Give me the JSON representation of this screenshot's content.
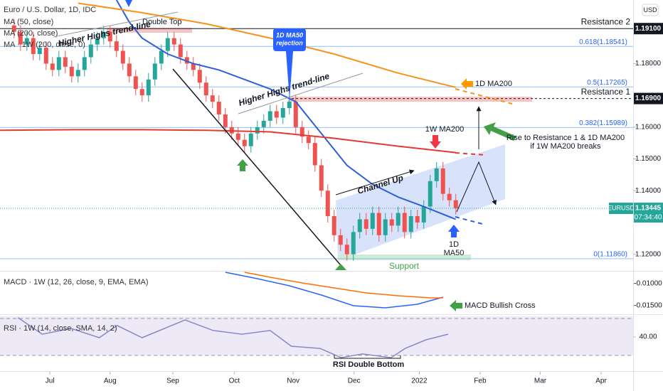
{
  "chart_data": [
    {
      "type": "candlestick",
      "title": "Euro / U.S. Dollar, 1D, IDC",
      "currency": "USD",
      "up_color": "#26a69a",
      "down_color": "#ef5350",
      "x": [
        0,
        1,
        2,
        3,
        4,
        5,
        6,
        7,
        8,
        9,
        10,
        11,
        12,
        13,
        14,
        15,
        16,
        17,
        18,
        19,
        20,
        21,
        22,
        23,
        24,
        25,
        26,
        27,
        28,
        29,
        30,
        31,
        32,
        33,
        34,
        35,
        36,
        37,
        38,
        39,
        40,
        41,
        42,
        43,
        44,
        45,
        46,
        47,
        48,
        49,
        50,
        51,
        52,
        53,
        54,
        55,
        56,
        57,
        58,
        59,
        60,
        61,
        62,
        63,
        64,
        65,
        66,
        67,
        68,
        69
      ],
      "open": [
        1.192,
        1.19,
        1.186,
        1.188,
        1.183,
        1.185,
        1.18,
        1.178,
        1.182,
        1.179,
        1.176,
        1.178,
        1.182,
        1.186,
        1.188,
        1.19,
        1.187,
        1.184,
        1.18,
        1.176,
        1.172,
        1.17,
        1.175,
        1.18,
        1.184,
        1.188,
        1.186,
        1.182,
        1.18,
        1.178,
        1.174,
        1.17,
        1.168,
        1.164,
        1.16,
        1.158,
        1.156,
        1.154,
        1.158,
        1.16,
        1.162,
        1.165,
        1.163,
        1.166,
        1.168,
        1.16,
        1.157,
        1.155,
        1.148,
        1.14,
        1.132,
        1.126,
        1.123,
        1.12,
        1.127,
        1.131,
        1.128,
        1.133,
        1.126,
        1.131,
        1.129,
        1.133,
        1.127,
        1.132,
        1.13,
        1.135,
        1.143,
        1.147,
        1.139,
        1.137
      ],
      "high": [
        1.194,
        1.192,
        1.19,
        1.19,
        1.187,
        1.187,
        1.182,
        1.184,
        1.184,
        1.181,
        1.18,
        1.184,
        1.188,
        1.19,
        1.192,
        1.192,
        1.189,
        1.186,
        1.182,
        1.178,
        1.174,
        1.177,
        1.182,
        1.186,
        1.19,
        1.19,
        1.188,
        1.184,
        1.182,
        1.18,
        1.176,
        1.172,
        1.17,
        1.166,
        1.162,
        1.16,
        1.158,
        1.16,
        1.162,
        1.164,
        1.167,
        1.167,
        1.168,
        1.17,
        1.17,
        1.162,
        1.159,
        1.157,
        1.15,
        1.142,
        1.134,
        1.128,
        1.125,
        1.129,
        1.133,
        1.133,
        1.135,
        1.135,
        1.133,
        1.133,
        1.135,
        1.135,
        1.134,
        1.134,
        1.137,
        1.145,
        1.149,
        1.149,
        1.141,
        1.139
      ],
      "low": [
        1.188,
        1.184,
        1.184,
        1.181,
        1.181,
        1.178,
        1.176,
        1.176,
        1.177,
        1.174,
        1.174,
        1.176,
        1.18,
        1.184,
        1.186,
        1.185,
        1.182,
        1.178,
        1.174,
        1.17,
        1.168,
        1.168,
        1.173,
        1.178,
        1.182,
        1.184,
        1.18,
        1.178,
        1.176,
        1.172,
        1.168,
        1.166,
        1.162,
        1.158,
        1.156,
        1.154,
        1.152,
        1.152,
        1.156,
        1.158,
        1.16,
        1.161,
        1.161,
        1.164,
        1.158,
        1.155,
        1.153,
        1.146,
        1.138,
        1.13,
        1.124,
        1.121,
        1.118,
        1.118,
        1.125,
        1.126,
        1.126,
        1.124,
        1.124,
        1.127,
        1.127,
        1.125,
        1.125,
        1.128,
        1.128,
        1.133,
        1.141,
        1.137,
        1.135,
        1.1325
      ],
      "close": [
        1.19,
        1.186,
        1.188,
        1.183,
        1.185,
        1.18,
        1.178,
        1.182,
        1.179,
        1.176,
        1.178,
        1.182,
        1.186,
        1.188,
        1.19,
        1.187,
        1.184,
        1.18,
        1.176,
        1.172,
        1.17,
        1.175,
        1.18,
        1.184,
        1.188,
        1.186,
        1.182,
        1.18,
        1.178,
        1.174,
        1.17,
        1.168,
        1.164,
        1.16,
        1.158,
        1.156,
        1.154,
        1.158,
        1.16,
        1.162,
        1.165,
        1.163,
        1.166,
        1.168,
        1.16,
        1.157,
        1.155,
        1.148,
        1.14,
        1.132,
        1.126,
        1.123,
        1.12,
        1.127,
        1.131,
        1.128,
        1.133,
        1.126,
        1.131,
        1.129,
        1.133,
        1.127,
        1.132,
        1.13,
        1.135,
        1.143,
        1.147,
        1.139,
        1.137,
        1.1345
      ],
      "series": [
        {
          "name": "MA (50, close)",
          "color": "#2f5fd8",
          "x": [
            16,
            18,
            20,
            24,
            28,
            32,
            36,
            40,
            44,
            48,
            52,
            56,
            60,
            64,
            69
          ],
          "values": [
            1.2,
            1.193,
            1.188,
            1.183,
            1.18,
            1.178,
            1.175,
            1.172,
            1.168,
            1.158,
            1.148,
            1.142,
            1.138,
            1.135,
            1.131
          ]
        },
        {
          "name": "MA (200, close)",
          "color": "#f7931a",
          "x": [
            10,
            20,
            30,
            40,
            50,
            60,
            69
          ],
          "values": [
            1.199,
            1.196,
            1.1925,
            1.188,
            1.183,
            1.177,
            1.1725
          ]
        },
        {
          "name": "MA · 1W (200, close, 0)",
          "color": "#e53935",
          "x": [
            -2.2,
            10,
            20,
            30,
            40,
            50,
            60,
            69
          ],
          "values": [
            1.159,
            1.1592,
            1.1592,
            1.159,
            1.1585,
            1.1565,
            1.154,
            1.152
          ]
        }
      ],
      "xlim": [
        -2.2,
        96.7
      ],
      "ylim": [
        1.115,
        1.2
      ],
      "xticks": [
        {
          "value": 5.6,
          "label": "Jul"
        },
        {
          "value": 15,
          "label": "Aug"
        },
        {
          "value": 24.8,
          "label": "Sep"
        },
        {
          "value": 34.4,
          "label": "Oct"
        },
        {
          "value": 43.6,
          "label": "Nov"
        },
        {
          "value": 53.1,
          "label": "Dec"
        },
        {
          "value": 63.3,
          "label": "2022"
        },
        {
          "value": 72.8,
          "label": "Feb"
        },
        {
          "value": 82.2,
          "label": "Mar"
        },
        {
          "value": 91.7,
          "label": "Apr"
        }
      ],
      "yticks": [
        {
          "value": 1.12,
          "label": "1.12000"
        },
        {
          "value": 1.14,
          "label": "1.14000"
        },
        {
          "value": 1.15,
          "label": "1.15000"
        },
        {
          "value": 1.16,
          "label": "1.16000"
        },
        {
          "value": 1.18,
          "label": "1.18000"
        }
      ],
      "fib_levels": [
        {
          "value": 1.18541,
          "label": "0.618(1.18541)"
        },
        {
          "value": 1.17265,
          "label": "0.5(1.17265)"
        },
        {
          "value": 1.15989,
          "label": "0.382(1.15989)"
        },
        {
          "value": 1.1186,
          "label": "0(1.11860)"
        }
      ],
      "resistance_levels": [
        {
          "name": "Resistance 2",
          "value": 1.191,
          "label": "1.19100"
        },
        {
          "name": "Resistance 1",
          "value": 1.169,
          "label": "1.16900"
        }
      ],
      "last_price": {
        "symbol": "EURUSD",
        "value": 1.13445,
        "label": "1.13445",
        "countdown": "07:34:40"
      },
      "annotations": [
        "Higher Highs trend-line",
        "Double Top",
        "1D MA50",
        "rejection",
        "Higher Highs trend-line",
        "1D MA200",
        "1W MA200",
        "Rise to Resistance 1 & 1D MA200",
        "if 1W MA200 breaks",
        "Channel Up",
        "1D",
        "MA50",
        "Support"
      ]
    },
    {
      "type": "line",
      "title": "MACD · 1W (12, 26, close, 9, EMA, EMA)",
      "series": [
        {
          "color": "#2962ff",
          "x": [
            33,
            38,
            43,
            48,
            53,
            58,
            63,
            67
          ],
          "values": [
            -0.00742,
            -0.00887,
            -0.01048,
            -0.01258,
            -0.015,
            -0.01548,
            -0.01468,
            -0.01306
          ]
        },
        {
          "color": "#ff6d00",
          "x": [
            36,
            40,
            45,
            50,
            55,
            60,
            65,
            67
          ],
          "values": [
            -0.00742,
            -0.00855,
            -0.00984,
            -0.01097,
            -0.0121,
            -0.01274,
            -0.01323,
            -0.01323
          ]
        }
      ],
      "xlim": [
        -2.2,
        96.7
      ],
      "ylim": [
        -0.01661,
        -0.00742
      ],
      "yticks": [
        {
          "value": -0.01,
          "label": "-0.01000"
        },
        {
          "value": -0.015,
          "label": "-0.01500"
        }
      ],
      "annotations": [
        "MACD Bullish Cross"
      ]
    },
    {
      "type": "line",
      "title": "RSI · 1W (14, close, SMA, 14, 2)",
      "band": [
        30,
        50
      ],
      "series": [
        {
          "color": "#8c86c9",
          "x": [
            0.6,
            4.4,
            8.9,
            13.3,
            16.1,
            20,
            26.7,
            31.1,
            35.6,
            40,
            43.3,
            47.8,
            51.1,
            54.4,
            58.9,
            61.1,
            64.4,
            67.8
          ],
          "values": [
            50.5,
            41.5,
            44.6,
            39.6,
            46.2,
            39.6,
            49.2,
            43.5,
            41.5,
            43.5,
            35,
            33.8,
            28.8,
            30.8,
            28.8,
            33.8,
            38.5,
            41.5
          ]
        }
      ],
      "xlim": [
        -2.2,
        96.7
      ],
      "ylim": [
        22.3,
        51.15
      ],
      "yticks": [
        {
          "value": 40,
          "label": "40.00"
        }
      ],
      "annotations": [
        "RSI Double Bottom"
      ]
    }
  ]
}
